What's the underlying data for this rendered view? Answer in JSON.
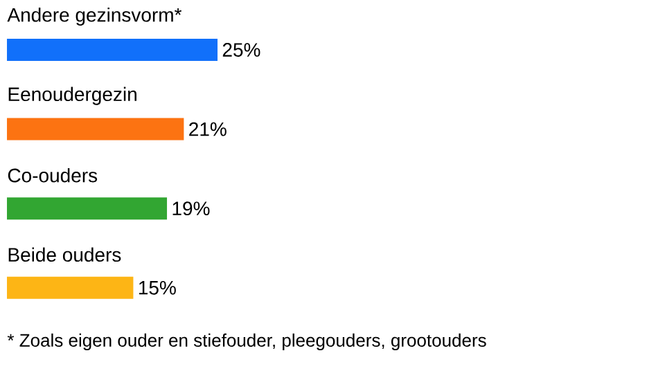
{
  "chart_data": {
    "type": "bar",
    "orientation": "horizontal",
    "categories": [
      "Andere gezinsvorm*",
      "Eenoudergezin",
      "Co-ouders",
      "Beide ouders"
    ],
    "values": [
      25,
      21,
      19,
      15
    ],
    "value_labels": [
      "25%",
      "21%",
      "19%",
      "15%"
    ],
    "colors": [
      "#1170fa",
      "#fc7312",
      "#32a632",
      "#fdb515"
    ],
    "annotations": [
      "*   Zoals eigen ouder en stiefouder, pleegouders, grootouders"
    ]
  }
}
